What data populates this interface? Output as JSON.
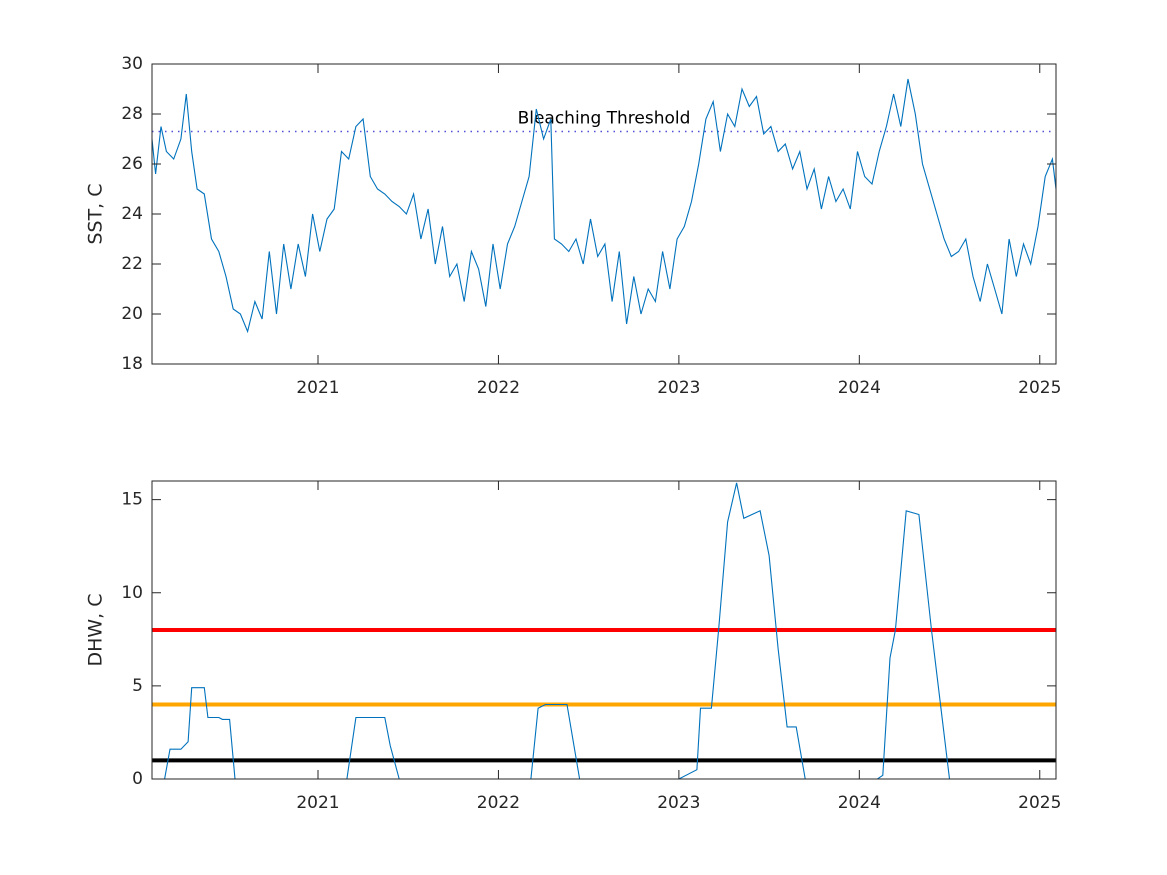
{
  "chart_data": [
    {
      "type": "line",
      "ylabel": "SST, C",
      "xlim": [
        2020.08,
        2025.09
      ],
      "xticks": [
        2021,
        2022,
        2023,
        2024,
        2025
      ],
      "ylim": [
        18,
        30
      ],
      "yticks": [
        18,
        20,
        22,
        24,
        26,
        28,
        30
      ],
      "reference_lines": [
        {
          "value": 27.3,
          "label": "Bleaching Threshold",
          "color": "#4f4fd9",
          "style": "dotted"
        }
      ],
      "series": [
        {
          "color": "#0072bd",
          "x": [
            2020.08,
            2020.1,
            2020.13,
            2020.16,
            2020.2,
            2020.24,
            2020.27,
            2020.3,
            2020.33,
            2020.37,
            2020.41,
            2020.45,
            2020.49,
            2020.53,
            2020.57,
            2020.61,
            2020.65,
            2020.69,
            2020.73,
            2020.77,
            2020.81,
            2020.85,
            2020.89,
            2020.93,
            2020.97,
            2021.01,
            2021.05,
            2021.09,
            2021.13,
            2021.17,
            2021.21,
            2021.25,
            2021.29,
            2021.33,
            2021.37,
            2021.41,
            2021.45,
            2021.49,
            2021.53,
            2021.57,
            2021.61,
            2021.65,
            2021.69,
            2021.73,
            2021.77,
            2021.81,
            2021.85,
            2021.89,
            2021.93,
            2021.97,
            2022.01,
            2022.05,
            2022.09,
            2022.13,
            2022.17,
            2022.21,
            2022.25,
            2022.29,
            2022.31,
            2022.35,
            2022.39,
            2022.43,
            2022.47,
            2022.51,
            2022.55,
            2022.59,
            2022.63,
            2022.67,
            2022.71,
            2022.75,
            2022.79,
            2022.83,
            2022.87,
            2022.91,
            2022.95,
            2022.99,
            2023.03,
            2023.07,
            2023.11,
            2023.15,
            2023.19,
            2023.23,
            2023.27,
            2023.31,
            2023.35,
            2023.39,
            2023.43,
            2023.47,
            2023.51,
            2023.55,
            2023.59,
            2023.63,
            2023.67,
            2023.71,
            2023.75,
            2023.79,
            2023.83,
            2023.87,
            2023.91,
            2023.95,
            2023.99,
            2024.03,
            2024.07,
            2024.11,
            2024.15,
            2024.19,
            2024.23,
            2024.27,
            2024.31,
            2024.35,
            2024.39,
            2024.43,
            2024.47,
            2024.51,
            2024.55,
            2024.59,
            2024.63,
            2024.67,
            2024.71,
            2024.75,
            2024.79,
            2024.83,
            2024.87,
            2024.91,
            2024.95,
            2024.99,
            2025.03,
            2025.07,
            2025.09
          ],
          "values": [
            27.0,
            25.6,
            27.5,
            26.5,
            26.2,
            27.0,
            28.8,
            26.5,
            25.0,
            24.8,
            23.0,
            22.5,
            21.5,
            20.2,
            20.0,
            19.3,
            20.5,
            19.8,
            22.5,
            20.0,
            22.8,
            21.0,
            22.8,
            21.5,
            24.0,
            22.5,
            23.8,
            24.2,
            26.5,
            26.2,
            27.5,
            27.8,
            25.5,
            25.0,
            24.8,
            24.5,
            24.3,
            24.0,
            24.8,
            23.0,
            24.2,
            22.0,
            23.5,
            21.5,
            22.0,
            20.5,
            22.5,
            21.8,
            20.3,
            22.8,
            21.0,
            22.8,
            23.5,
            24.5,
            25.5,
            28.2,
            27.0,
            27.8,
            23.0,
            22.8,
            22.5,
            23.0,
            22.0,
            23.8,
            22.3,
            22.8,
            20.5,
            22.5,
            19.6,
            21.5,
            20.0,
            21.0,
            20.5,
            22.5,
            21.0,
            23.0,
            23.5,
            24.5,
            26.0,
            27.8,
            28.5,
            26.5,
            28.0,
            27.5,
            29.0,
            28.3,
            28.7,
            27.2,
            27.5,
            26.5,
            26.8,
            25.8,
            26.5,
            25.0,
            25.8,
            24.2,
            25.5,
            24.5,
            25.0,
            24.2,
            26.5,
            25.5,
            25.2,
            26.5,
            27.5,
            28.8,
            27.5,
            29.4,
            28.0,
            26.0,
            25.0,
            24.0,
            23.0,
            22.3,
            22.5,
            23.0,
            21.5,
            20.5,
            22.0,
            21.0,
            20.0,
            23.0,
            21.5,
            22.8,
            22.0,
            23.5,
            25.5,
            26.2,
            25.0
          ]
        }
      ]
    },
    {
      "type": "line",
      "ylabel": "DHW, C",
      "xlim": [
        2020.08,
        2025.09
      ],
      "xticks": [
        2021,
        2022,
        2023,
        2024,
        2025
      ],
      "ylim": [
        0,
        16
      ],
      "yticks": [
        0,
        5,
        10,
        15
      ],
      "reference_lines": [
        {
          "value": 1,
          "color": "#000000",
          "style": "solid"
        },
        {
          "value": 4,
          "color": "#ffa500",
          "style": "solid"
        },
        {
          "value": 8,
          "color": "#ff0000",
          "style": "solid"
        }
      ],
      "series": [
        {
          "color": "#0072bd",
          "x": [
            2020.08,
            2020.15,
            2020.18,
            2020.24,
            2020.28,
            2020.3,
            2020.37,
            2020.39,
            2020.45,
            2020.47,
            2020.51,
            2020.54,
            2021.16,
            2021.21,
            2021.37,
            2021.4,
            2021.45,
            2022.18,
            2022.22,
            2022.26,
            2022.38,
            2022.45,
            2023.0,
            2023.1,
            2023.12,
            2023.18,
            2023.22,
            2023.27,
            2023.32,
            2023.36,
            2023.45,
            2023.5,
            2023.55,
            2023.6,
            2023.65,
            2023.7,
            2024.1,
            2024.13,
            2024.17,
            2024.2,
            2024.26,
            2024.33,
            2024.4,
            2024.45,
            2024.5,
            2025.09
          ],
          "values": [
            0,
            0,
            1.6,
            1.6,
            2.0,
            4.9,
            4.9,
            3.3,
            3.3,
            3.2,
            3.2,
            0,
            0,
            3.3,
            3.3,
            1.8,
            0,
            0,
            3.8,
            4.0,
            4.0,
            0,
            0,
            0.5,
            3.8,
            3.8,
            8.0,
            13.8,
            15.9,
            14.0,
            14.4,
            12.0,
            7.0,
            2.8,
            2.8,
            0,
            0,
            0.2,
            6.5,
            8.0,
            14.4,
            14.2,
            8.0,
            4.0,
            0,
            0
          ]
        }
      ]
    }
  ]
}
